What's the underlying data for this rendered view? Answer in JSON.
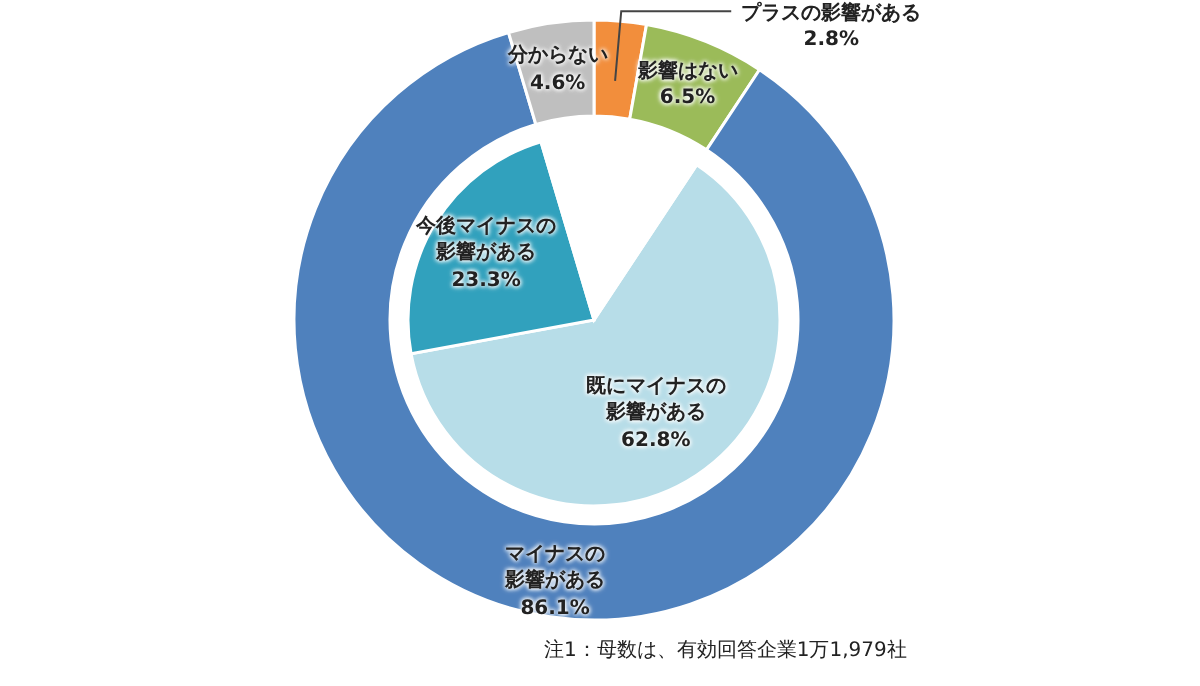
{
  "chart_data": [
    {
      "type": "donut",
      "categories": [
        "プラスの影響がある",
        "影響はない",
        "マイナスの影響がある",
        "分からない"
      ],
      "values": [
        2.8,
        6.5,
        86.1,
        4.6
      ],
      "value_labels": [
        "2.8%",
        "6.5%",
        "86.1%",
        "4.6%"
      ],
      "colors": [
        "#f28e3c",
        "#9bbb59",
        "#4f81bd",
        "#bfbfbf"
      ],
      "annotations": [
        "注1：母数は、有効回答企業1万1,979社"
      ]
    },
    {
      "type": "pie",
      "categories": [
        "既にマイナスの影響がある",
        "今後マイナスの影響がある",
        null
      ],
      "values": [
        62.8,
        23.3,
        13.9
      ],
      "value_labels": [
        "62.8%",
        "23.3%",
        null
      ],
      "colors": [
        "#b7dde8",
        "#31a1bd",
        "#ffffff"
      ]
    }
  ]
}
